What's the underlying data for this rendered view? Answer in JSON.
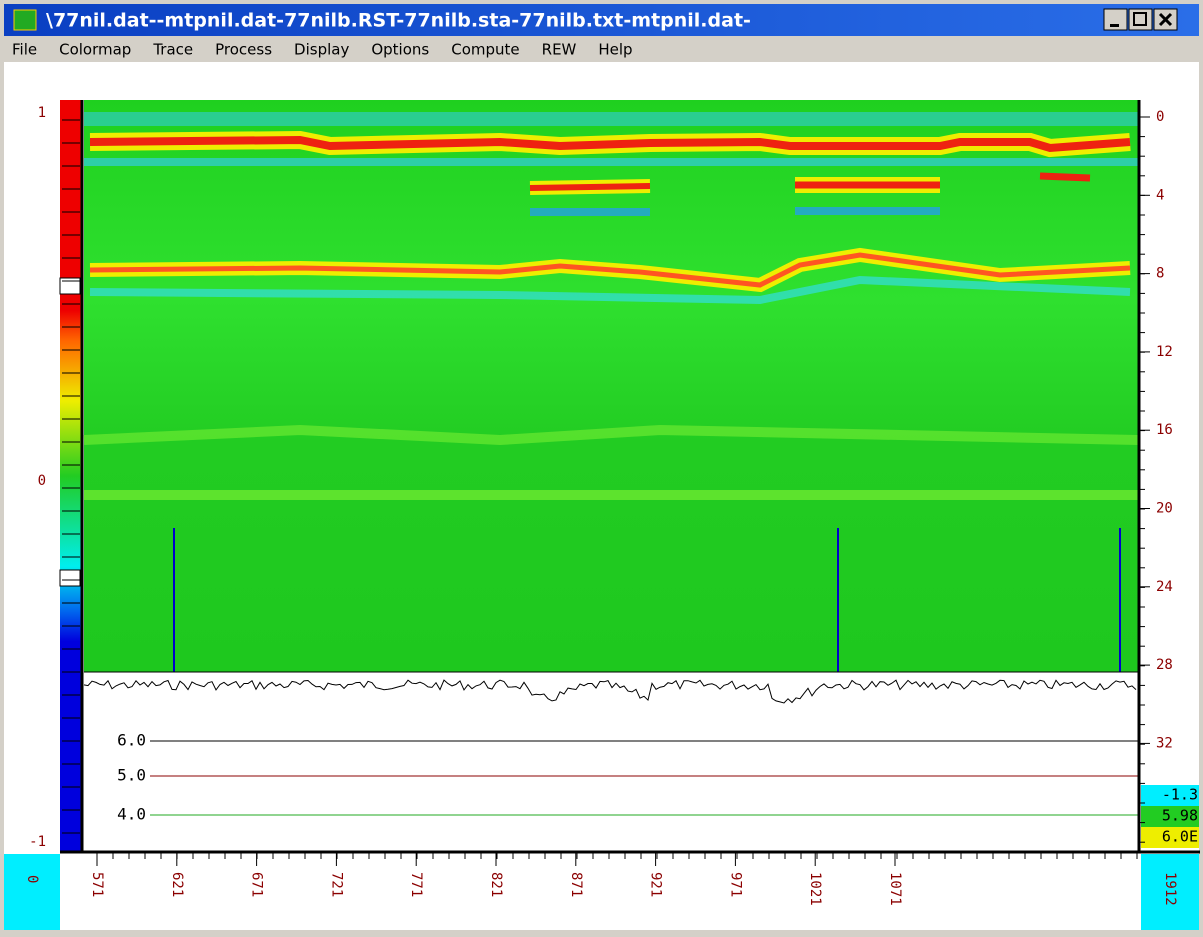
{
  "window": {
    "title": "\\77nil.dat--mtpnil.dat-77nilb.RST-77nilb.sta-77nilb.txt-mtpnil.dat-"
  },
  "menu": [
    "File",
    "Colormap",
    "Trace",
    "Process",
    "Display",
    "Options",
    "Compute",
    "REW",
    "Help"
  ],
  "colorbar": {
    "labels": [
      "1",
      "0",
      "-1"
    ]
  },
  "depth_axis": {
    "labels": [
      "0",
      "4",
      "8",
      "12",
      "16",
      "20",
      "24",
      "28",
      "32"
    ]
  },
  "trace_panel": {
    "labels": [
      "6.0",
      "5.0",
      "4.0"
    ]
  },
  "readouts": [
    "-1.3",
    "5.98",
    "6.0E"
  ],
  "distance_axis": {
    "labels": [
      "571",
      "621",
      "671",
      "721",
      "771",
      "821",
      "871",
      "921",
      "971",
      "1021",
      "1071"
    ],
    "start": "0",
    "end": "1912"
  }
}
